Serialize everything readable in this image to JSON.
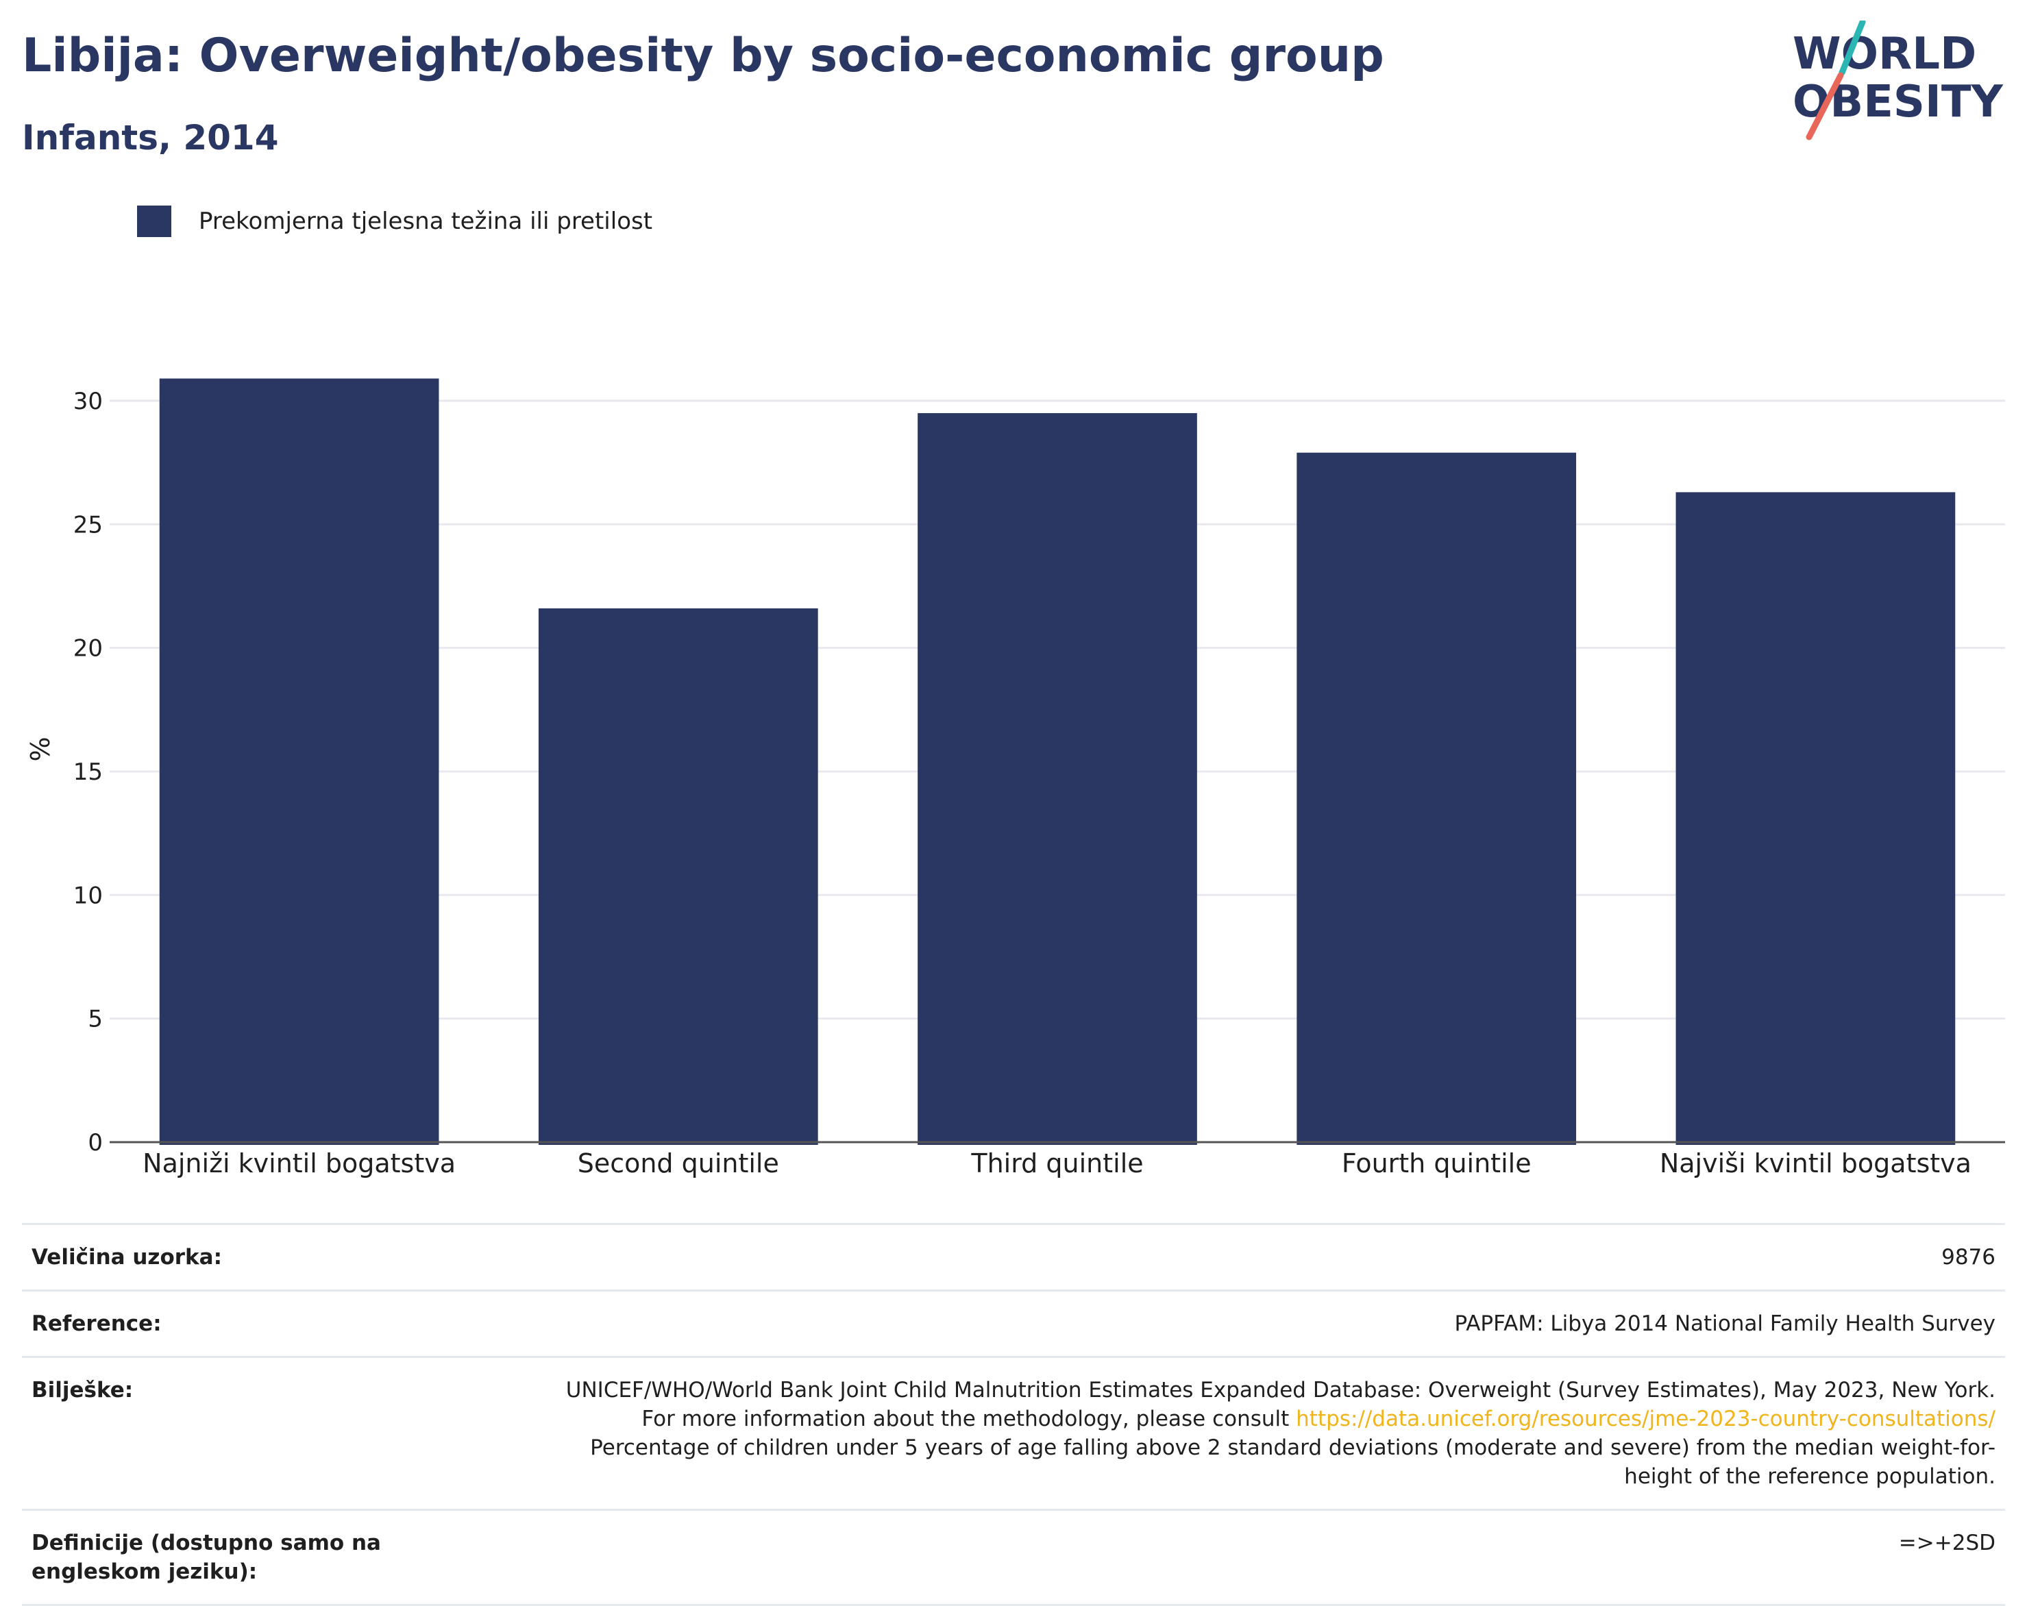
{
  "header": {
    "title": "Libija: Overweight/obesity by socio-economic group",
    "subtitle": "Infants, 2014",
    "logo_line1": "WORLD",
    "logo_line2": "OBESITY"
  },
  "legend": {
    "label": "Prekomjerna tjelesna težina ili pretilost"
  },
  "colors": {
    "bar": "#2a3763",
    "title": "#2a3763",
    "grid": "#e8e8ef",
    "axis": "#555555",
    "link": "#f0b41c",
    "logo_teal": "#2ab7b4",
    "logo_red": "#e8675a"
  },
  "chart_data": {
    "type": "bar",
    "categories": [
      "Najniži kvintil bogatstva",
      "Second quintile",
      "Third quintile",
      "Fourth quintile",
      "Najviši kvintil bogatstva"
    ],
    "series": [
      {
        "name": "Prekomjerna tjelesna težina ili pretilost",
        "values": [
          30.9,
          21.6,
          29.5,
          27.9,
          26.3
        ]
      }
    ],
    "ylabel": "%",
    "xlabel": "",
    "ylim": [
      0,
      31.8
    ],
    "yticks": [
      0,
      5,
      10,
      15,
      20,
      25,
      30
    ],
    "grid": true,
    "legend_position": "top-left"
  },
  "info": {
    "sample_label": "Veličina uzorka:",
    "sample_value": "9876",
    "reference_label": "Reference:",
    "reference_value": "PAPFAM: Libya 2014 National Family Health Survey",
    "notes_label": "Bilješke:",
    "notes_text1": "UNICEF/WHO/World Bank Joint Child Malnutrition Estimates Expanded Database: Overweight (Survey Estimates), May 2023, New York. For more information about the methodology, please consult ",
    "notes_link": "https://data.unicef.org/resources/jme-2023-country-consultations/",
    "notes_text2": " Percentage of children under 5 years of age falling above 2 standard deviations (moderate and severe) from the median weight-for-height of the reference population.",
    "definitions_label": "Definicije (dostupno samo na engleskom jeziku):",
    "definitions_value": "=>+2SD"
  }
}
